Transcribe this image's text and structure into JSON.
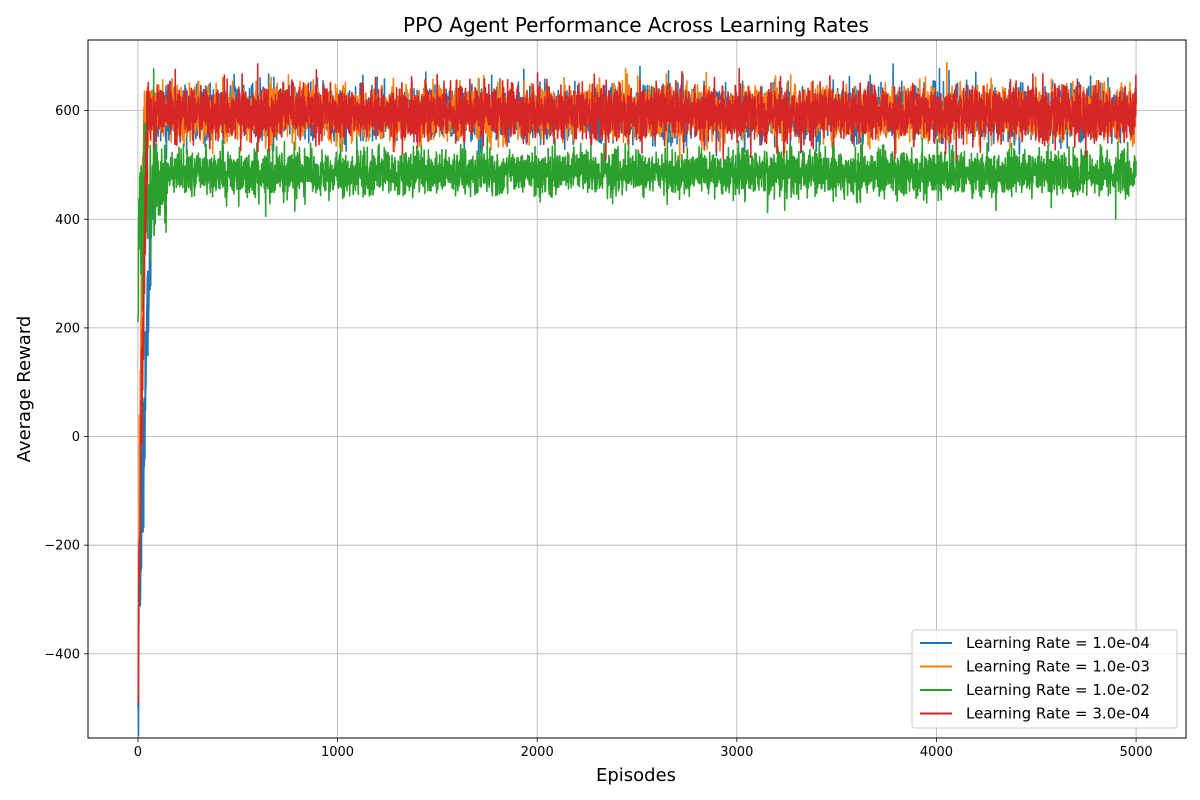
{
  "chart_data": {
    "type": "line",
    "title": "PPO Agent Performance Across Learning Rates",
    "xlabel": "Episodes",
    "ylabel": "Average Reward",
    "xlim": [
      -250,
      5250
    ],
    "ylim": [
      -555,
      730
    ],
    "xticks": [
      0,
      1000,
      2000,
      3000,
      4000,
      5000
    ],
    "yticks": [
      -400,
      -200,
      0,
      200,
      400,
      600
    ],
    "grid": true,
    "legend_position": "lower-right",
    "series": [
      {
        "name": "Learning Rate = 1.0e-04",
        "color": "#1f77b4",
        "start": -490,
        "start_min": -495,
        "warmup_episodes": 90,
        "plateau": 595,
        "noise": 24
      },
      {
        "name": "Learning Rate = 1.0e-03",
        "color": "#ff7f0e",
        "start": -480,
        "start_min": -480,
        "warmup_episodes": 30,
        "plateau": 595,
        "noise": 24
      },
      {
        "name": "Learning Rate = 1.0e-02",
        "color": "#2ca02c",
        "start": 395,
        "start_min": 220,
        "warmup_episodes": 150,
        "plateau": 485,
        "noise": 20
      },
      {
        "name": "Learning Rate = 3.0e-04",
        "color": "#d62728",
        "start": -490,
        "start_min": -490,
        "warmup_episodes": 50,
        "plateau": 595,
        "noise": 24
      }
    ]
  }
}
